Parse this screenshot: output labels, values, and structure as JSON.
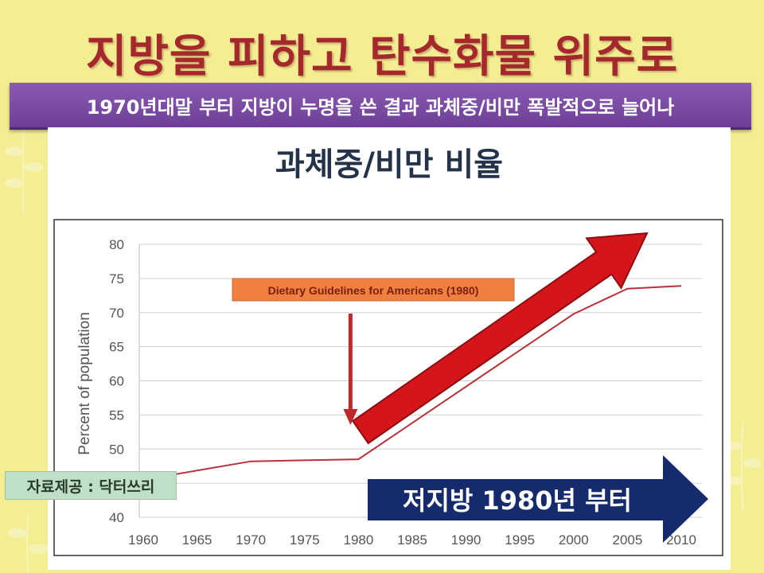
{
  "slide": {
    "title": "지방을 피하고 탄수화물 위주로",
    "subtitle": "1970년대말 부터 지방이 누명을 쓴 결과 과체중/비만 폭발적으로 늘어나",
    "source": "자료제공 : 닥터쓰리"
  },
  "colors": {
    "title": "#a4282c",
    "subtitle_bar": "#7a4aa3",
    "line": "#b8323a",
    "red_arrow": "#d4161c",
    "blue_arrow": "#162a6e",
    "guideline_box": "#f08040",
    "background": "#f4ee93"
  },
  "chart_data": {
    "type": "line",
    "title": "과체중/비만 비율",
    "ylabel": "Percent of population",
    "xlabel": "",
    "x": [
      1960,
      1970,
      1980,
      2000,
      2005,
      2010
    ],
    "series": [
      {
        "values": [
          45.5,
          48.2,
          48.5,
          69.8,
          73.5,
          73.9
        ]
      }
    ],
    "xticks": [
      "1960",
      "1965",
      "1970",
      "1975",
      "1980",
      "1985",
      "1990",
      "1995",
      "2000",
      "2005",
      "2010"
    ],
    "yticks": [
      "40",
      "45",
      "50",
      "55",
      "60",
      "65",
      "70",
      "75",
      "80"
    ],
    "xlim": [
      1960,
      2010
    ],
    "ylim": [
      40,
      80
    ],
    "grid": true,
    "annotations": {
      "guideline_label": "Dietary Guidelines for Americans (1980)",
      "guideline_year": 1980,
      "banner": "저지방 1980년 부터"
    }
  }
}
